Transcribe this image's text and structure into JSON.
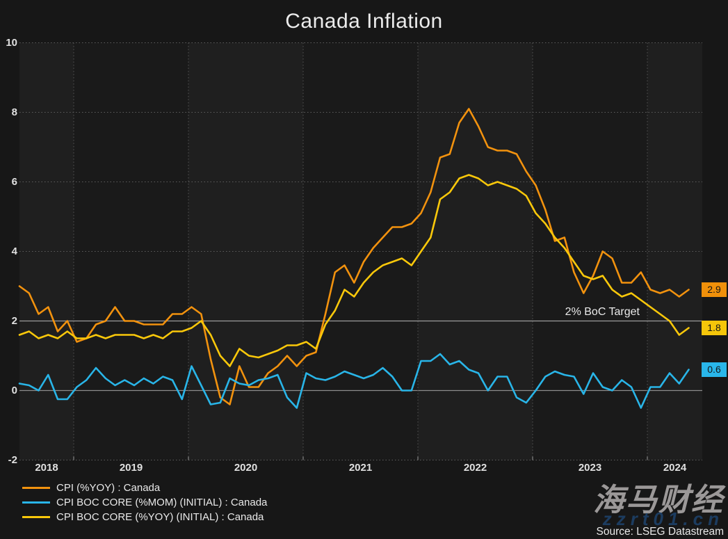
{
  "title": "Canada Inflation",
  "target_label": "2% BoC Target",
  "source": "Source: LSEG Datastream",
  "watermark": {
    "cjk": "海马财经",
    "url": "zzrt01.cn"
  },
  "colors": {
    "background": "#171717",
    "plot_background": "#1a1a1a",
    "year_band": "#1f1f1f",
    "grid_dotted": "#5f5f5f",
    "grid_vertical": "#545454",
    "target_line": "#9c9c9c",
    "zero_line": "#8c8c8c",
    "axis_text": "#e0e0e0",
    "badge_text": "#151515"
  },
  "chart_data": {
    "type": "line",
    "title": "Canada Inflation",
    "x_start": "2018-07",
    "x_end": "2024-05",
    "x_frequency": "monthly",
    "x_tick_labels": [
      "2018",
      "2019",
      "2020",
      "2021",
      "2022",
      "2023",
      "2024"
    ],
    "y_ticks": [
      10,
      8,
      6,
      4,
      2,
      0,
      -2
    ],
    "ylim": [
      -2,
      10
    ],
    "grid": "dotted",
    "target_line_value": 2,
    "legend_position": "bottom-left",
    "series": [
      {
        "name": "CPI (%YOY) : Canada",
        "color": "#f2920e",
        "badge_color": "#f0900a",
        "last_label": "2.9",
        "values": [
          3.0,
          2.8,
          2.2,
          2.4,
          1.7,
          2.0,
          1.4,
          1.5,
          1.9,
          2.0,
          2.4,
          2.0,
          2.0,
          1.9,
          1.9,
          1.9,
          2.2,
          2.2,
          2.4,
          2.2,
          0.9,
          -0.2,
          -0.4,
          0.7,
          0.1,
          0.1,
          0.5,
          0.7,
          1.0,
          0.7,
          1.0,
          1.1,
          2.2,
          3.4,
          3.6,
          3.1,
          3.7,
          4.1,
          4.4,
          4.7,
          4.7,
          4.8,
          5.1,
          5.7,
          6.7,
          6.8,
          7.7,
          8.1,
          7.6,
          7.0,
          6.9,
          6.9,
          6.8,
          6.3,
          5.9,
          5.2,
          4.3,
          4.4,
          3.4,
          2.8,
          3.3,
          4.0,
          3.8,
          3.1,
          3.1,
          3.4,
          2.9,
          2.8,
          2.9,
          2.7,
          2.9
        ]
      },
      {
        "name": "CPI BOC CORE (%MOM) (INITIAL) : Canada",
        "color": "#29b5e8",
        "badge_color": "#29b6ea",
        "last_label": "0.6",
        "values": [
          0.2,
          0.15,
          0.0,
          0.45,
          -0.25,
          -0.25,
          0.1,
          0.3,
          0.65,
          0.35,
          0.15,
          0.3,
          0.15,
          0.35,
          0.2,
          0.4,
          0.3,
          -0.25,
          0.7,
          0.15,
          -0.4,
          -0.35,
          0.35,
          0.2,
          0.15,
          0.3,
          0.35,
          0.45,
          -0.2,
          -0.5,
          0.5,
          0.35,
          0.3,
          0.4,
          0.55,
          0.45,
          0.35,
          0.45,
          0.65,
          0.4,
          0.0,
          0.0,
          0.85,
          0.85,
          1.05,
          0.75,
          0.85,
          0.6,
          0.5,
          0.0,
          0.4,
          0.4,
          -0.2,
          -0.35,
          0.0,
          0.4,
          0.55,
          0.45,
          0.4,
          -0.1,
          0.5,
          0.1,
          0.0,
          0.3,
          0.1,
          -0.5,
          0.1,
          0.1,
          0.5,
          0.2,
          0.6
        ]
      },
      {
        "name": "CPI BOC CORE (%YOY) (INITIAL) : Canada",
        "color": "#fac80a",
        "badge_color": "#f5c60a",
        "last_label": "1.8",
        "values": [
          1.6,
          1.7,
          1.5,
          1.6,
          1.5,
          1.7,
          1.5,
          1.5,
          1.6,
          1.5,
          1.6,
          1.6,
          1.6,
          1.5,
          1.6,
          1.5,
          1.7,
          1.7,
          1.8,
          2.0,
          1.6,
          1.0,
          0.7,
          1.2,
          1.0,
          0.95,
          1.05,
          1.15,
          1.3,
          1.3,
          1.4,
          1.2,
          1.9,
          2.3,
          2.9,
          2.7,
          3.1,
          3.4,
          3.6,
          3.7,
          3.8,
          3.6,
          4.0,
          4.4,
          5.5,
          5.7,
          6.1,
          6.2,
          6.1,
          5.9,
          6.0,
          5.9,
          5.8,
          5.6,
          5.1,
          4.8,
          4.4,
          4.1,
          3.7,
          3.3,
          3.2,
          3.3,
          2.9,
          2.7,
          2.8,
          2.6,
          2.4,
          2.2,
          2.0,
          1.6,
          1.8
        ]
      }
    ]
  }
}
